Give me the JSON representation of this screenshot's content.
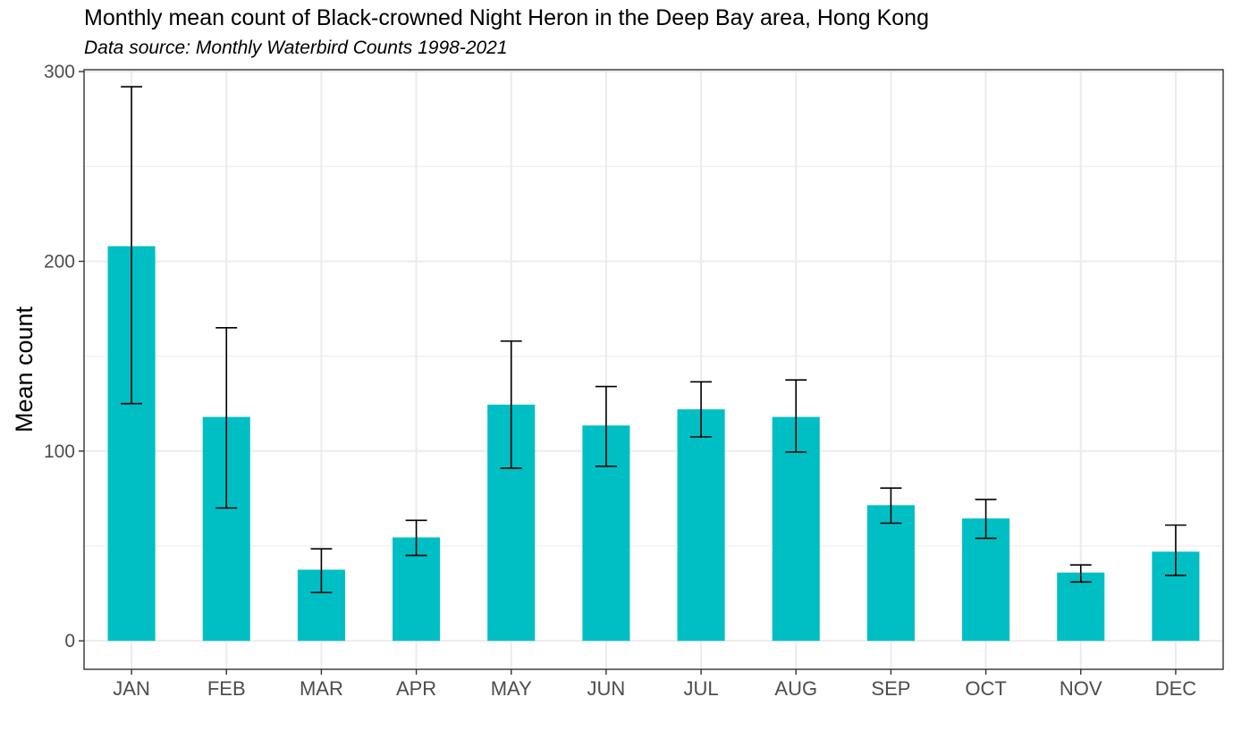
{
  "chart_data": {
    "type": "bar",
    "title": "Monthly mean count of Black-crowned Night Heron in the Deep Bay area, Hong Kong",
    "subtitle": "Data source: Monthly Waterbird Counts 1998-2021",
    "xlabel": "",
    "ylabel": "Mean count",
    "categories": [
      "JAN",
      "FEB",
      "MAR",
      "APR",
      "MAY",
      "JUN",
      "JUL",
      "AUG",
      "SEP",
      "OCT",
      "NOV",
      "DEC"
    ],
    "values": [
      208,
      118,
      37.5,
      54.5,
      124.5,
      113.5,
      122,
      118,
      71.5,
      64.5,
      36,
      47
    ],
    "error_low": [
      125,
      70,
      25.5,
      45,
      91,
      92,
      107.5,
      99.5,
      62,
      54,
      31,
      34.5
    ],
    "error_high": [
      292,
      165,
      48.5,
      63.5,
      158,
      134,
      136.5,
      137.5,
      80.5,
      74.5,
      40,
      61
    ],
    "yticks": [
      0,
      100,
      200,
      300
    ],
    "ylim": [
      -15,
      301
    ],
    "grid": true,
    "colors": {
      "bar": "#00BFC4",
      "error_bar": "#000000",
      "grid": "#EBEBEB",
      "panel_border": "#333333",
      "tick_text": "#4D4D4D"
    }
  }
}
